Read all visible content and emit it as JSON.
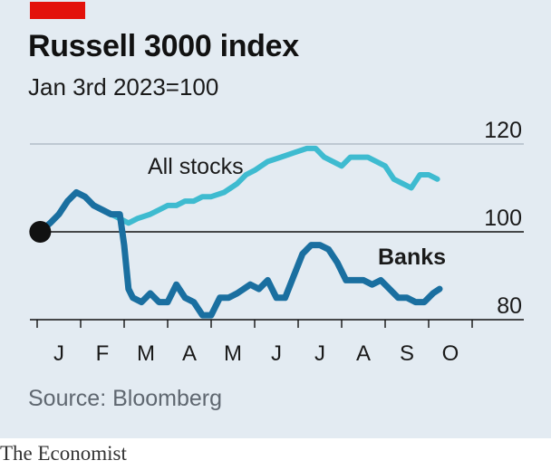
{
  "header": {
    "title": "Russell 3000 index",
    "subtitle": "Jan 3rd 2023=100",
    "source": "Source: Bloomberg",
    "brand": "The Economist"
  },
  "colors": {
    "background": "#e3ebf2",
    "all_stocks": "#3ebbd0",
    "banks": "#1a6fa0",
    "accent_red": "#e3120b"
  },
  "chart_data": {
    "type": "line",
    "title": "Russell 3000 index",
    "subtitle": "Jan 3rd 2023=100",
    "ylim": [
      78,
      122
    ],
    "yticks": [
      80,
      100,
      120
    ],
    "grid": true,
    "months": [
      "J",
      "F",
      "M",
      "A",
      "M",
      "J",
      "J",
      "A",
      "S",
      "O"
    ],
    "x_unit": "month index (0 = Jan 1st 2023)",
    "series": [
      {
        "name": "All stocks",
        "x": [
          0.07,
          0.3,
          0.5,
          0.7,
          0.9,
          1.1,
          1.3,
          1.5,
          1.7,
          1.9,
          2.1,
          2.3,
          2.6,
          2.8,
          3.0,
          3.2,
          3.4,
          3.6,
          3.8,
          4.0,
          4.3,
          4.6,
          4.8,
          5.0,
          5.3,
          5.6,
          5.9,
          6.2,
          6.4,
          6.6,
          6.8,
          7.0,
          7.2,
          7.4,
          7.6,
          7.8,
          8.0,
          8.2,
          8.4,
          8.6,
          8.8,
          9.0,
          9.2
        ],
        "values": [
          100,
          102,
          104,
          107,
          109,
          108,
          106,
          105,
          104,
          103,
          102,
          103,
          104,
          105,
          106,
          106,
          107,
          107,
          108,
          108,
          109,
          111,
          113,
          114,
          116,
          117,
          118,
          119,
          119,
          117,
          116,
          115,
          117,
          117,
          117,
          116,
          115,
          112,
          111,
          110,
          113,
          113,
          112
        ]
      },
      {
        "name": "Banks",
        "x": [
          0.07,
          0.3,
          0.5,
          0.7,
          0.9,
          1.1,
          1.3,
          1.5,
          1.7,
          1.9,
          2.0,
          2.1,
          2.2,
          2.4,
          2.6,
          2.8,
          3.0,
          3.2,
          3.4,
          3.6,
          3.8,
          4.0,
          4.2,
          4.4,
          4.6,
          4.9,
          5.1,
          5.3,
          5.5,
          5.7,
          5.9,
          6.1,
          6.3,
          6.5,
          6.7,
          6.9,
          7.1,
          7.3,
          7.5,
          7.7,
          7.9,
          8.1,
          8.3,
          8.5,
          8.7,
          8.9,
          9.1,
          9.25
        ],
        "values": [
          100,
          102,
          104,
          107,
          109,
          108,
          106,
          105,
          104,
          104,
          97,
          87,
          85,
          84,
          86,
          84,
          84,
          88,
          85,
          84,
          81,
          81,
          85,
          85,
          86,
          88,
          87,
          89,
          85,
          85,
          90,
          95,
          97,
          97,
          96,
          93,
          89,
          89,
          89,
          88,
          89,
          87,
          85,
          85,
          84,
          84,
          86,
          87
        ]
      }
    ]
  }
}
